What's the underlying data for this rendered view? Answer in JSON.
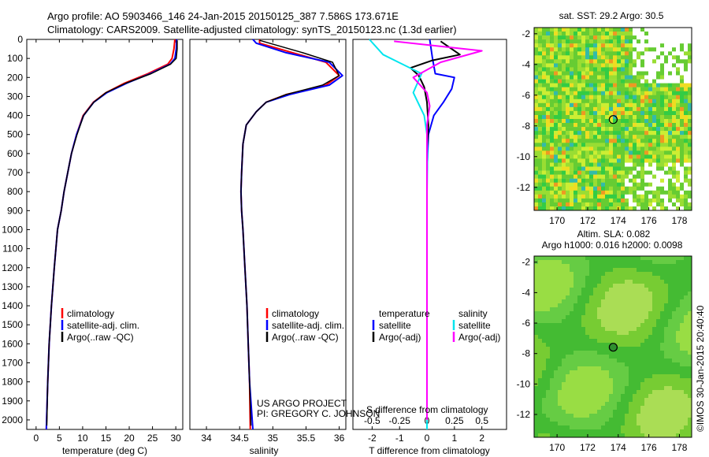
{
  "header": {
    "line1": "Argo profile: AO 5903466_146 24-Jan-2015 20150125_387 7.586S 173.671E",
    "line2": "Climatology: CARS2009. Satellite-adjusted climatology: synTS_20150123.nc (1.3d earlier)"
  },
  "credit": {
    "project": "US ARGO PROJECT",
    "pi": "PI: GREGORY C. JOHNSON",
    "stamp": "©IMOS 30-Jan-2015 20:40:40"
  },
  "colors": {
    "climatology": "#ff0000",
    "satellite": "#0000ff",
    "argo": "#000000",
    "sat_salinity": "#00e5ee",
    "argo_salinity": "#ff00ff"
  },
  "chart_data": [
    {
      "type": "line",
      "id": "temperature",
      "xlabel": "temperature (deg C)",
      "ylabel": "",
      "xlim": [
        -2,
        31.5
      ],
      "ylim": [
        2050,
        0
      ],
      "xticks": [
        "0",
        "5",
        "10",
        "15",
        "20",
        "25",
        "30"
      ],
      "yticks": [
        "0",
        "100",
        "200",
        "300",
        "400",
        "500",
        "600",
        "700",
        "800",
        "900",
        "1000",
        "1100",
        "1200",
        "1300",
        "1400",
        "1500",
        "1600",
        "1700",
        "1800",
        "1900",
        "2000"
      ],
      "legend": [
        "climatology",
        "satellite-adj. clim.",
        "Argo(..raw -QC)"
      ],
      "series": [
        {
          "name": "climatology",
          "x": [
            29.8,
            29.6,
            29.2,
            28.3,
            24,
            19,
            15,
            12.3,
            10.1,
            8.7,
            7.6,
            6.8,
            6.0,
            5.4,
            4.6,
            3.9,
            3.3,
            2.8,
            2.5,
            2.2
          ],
          "y": [
            0,
            50,
            100,
            130,
            180,
            230,
            280,
            330,
            400,
            500,
            600,
            700,
            800,
            900,
            1000,
            1200,
            1400,
            1600,
            1800,
            2050
          ]
        },
        {
          "name": "satellite-adj. clim.",
          "x": [
            30.2,
            30.1,
            29.8,
            28.8,
            24.5,
            19.5,
            15.2,
            12.4,
            10.2,
            8.7,
            7.6,
            6.8,
            6.0,
            5.4,
            4.6,
            3.9,
            3.3,
            2.8,
            2.5,
            2.2
          ],
          "y": [
            0,
            50,
            100,
            130,
            180,
            230,
            280,
            330,
            400,
            500,
            600,
            700,
            800,
            900,
            1000,
            1200,
            1400,
            1600,
            1800,
            2050
          ]
        },
        {
          "name": "Argo(..raw -QC)",
          "x": [
            30.3,
            30.3,
            30.1,
            28.9,
            24.7,
            19.3,
            15.0,
            12.4,
            10.2,
            8.8,
            7.6,
            6.8,
            6.0,
            5.4,
            4.6,
            3.9,
            3.3,
            2.8,
            2.5,
            2.3
          ],
          "y": [
            5,
            50,
            100,
            130,
            180,
            230,
            280,
            330,
            400,
            500,
            600,
            700,
            800,
            900,
            1000,
            1200,
            1400,
            1600,
            1800,
            2030
          ]
        }
      ]
    },
    {
      "type": "line",
      "id": "salinity",
      "xlabel": "salinity",
      "ylabel": "",
      "xlim": [
        33.75,
        36.1
      ],
      "ylim": [
        2050,
        0
      ],
      "xticks": [
        "34",
        "34.5",
        "35",
        "35.5",
        "36"
      ],
      "legend": [
        "climatology",
        "satellite-adj. clim.",
        "Argo(..raw -QC)"
      ],
      "series": [
        {
          "name": "climatology",
          "x": [
            34.8,
            34.8,
            35.3,
            35.8,
            36.0,
            35.8,
            35.2,
            34.9,
            34.75,
            34.6,
            34.55,
            34.53,
            34.52,
            34.53,
            34.55,
            34.58,
            34.61,
            34.63,
            34.65,
            34.66
          ],
          "y": [
            0,
            20,
            70,
            120,
            190,
            240,
            290,
            330,
            380,
            450,
            550,
            700,
            800,
            900,
            1000,
            1200,
            1400,
            1600,
            1800,
            2050
          ]
        },
        {
          "name": "satellite-adj. clim.",
          "x": [
            34.7,
            34.75,
            35.2,
            35.85,
            36.05,
            35.85,
            35.25,
            34.9,
            34.75,
            34.6,
            34.55,
            34.53,
            34.52,
            34.53,
            34.55,
            34.58,
            34.61,
            34.63,
            34.65,
            34.7
          ],
          "y": [
            0,
            20,
            70,
            120,
            190,
            240,
            290,
            330,
            380,
            450,
            550,
            700,
            800,
            900,
            1000,
            1200,
            1400,
            1600,
            1800,
            2050
          ]
        },
        {
          "name": "Argo(..raw -QC)",
          "x": [
            34.8,
            34.95,
            35.45,
            35.9,
            36.0,
            35.75,
            35.2,
            34.9,
            34.75,
            34.6,
            34.55,
            34.53,
            34.52,
            34.53,
            34.55,
            34.58,
            34.61,
            34.63,
            34.65,
            34.67
          ],
          "y": [
            5,
            20,
            70,
            120,
            190,
            240,
            290,
            330,
            380,
            450,
            550,
            700,
            800,
            900,
            1000,
            1200,
            1400,
            1600,
            1800,
            2030
          ]
        }
      ]
    },
    {
      "type": "line",
      "id": "difference",
      "xlabel": "T difference from climatology",
      "xlabel_top": "S difference from climatology",
      "xlim": [
        -2.7,
        2.9
      ],
      "ylim": [
        2050,
        0
      ],
      "xticks": [
        "-2",
        "-1",
        "0",
        "1",
        "2"
      ],
      "xticks_s": [
        "-0.5",
        "-0.25",
        "0",
        "0.25",
        "0.5"
      ],
      "legend_t": [
        "temperature",
        "satellite",
        "Argo(-adj)"
      ],
      "legend_s": [
        "salinity",
        "satellite",
        "Argo(-adj)"
      ],
      "series": [
        {
          "name": "satellite",
          "x": [
            0.1,
            0.2,
            0.3,
            1.0,
            0.9,
            0.6,
            0.25,
            0.05,
            0,
            0,
            0,
            0
          ],
          "y": [
            0,
            100,
            180,
            200,
            260,
            330,
            400,
            500,
            700,
            1000,
            1500,
            2050
          ]
        },
        {
          "name": "Argo(-adj)",
          "x": [
            0.5,
            1.2,
            0.2,
            -0.6,
            -0.3,
            -0.1,
            0,
            0.05,
            0,
            0,
            0,
            0
          ],
          "y": [
            10,
            80,
            110,
            150,
            190,
            250,
            330,
            450,
            600,
            800,
            1200,
            2000
          ]
        },
        {
          "name": "satellite",
          "x": [
            -2.1,
            -1.6,
            -0.2,
            -0.5,
            -0.1,
            0,
            0.02,
            0,
            0,
            0
          ],
          "y": [
            0,
            80,
            180,
            280,
            400,
            500,
            600,
            800,
            1200,
            2050
          ]
        },
        {
          "name": "Argo(-adj)",
          "x": [
            -1.2,
            2.0,
            0.5,
            -0.5,
            0,
            0.1,
            0,
            0,
            0,
            0
          ],
          "y": [
            10,
            60,
            120,
            200,
            280,
            350,
            450,
            600,
            1000,
            2000
          ]
        }
      ]
    },
    {
      "type": "heatmap",
      "id": "sst-map",
      "title": "sat. SST: 29.2  Argo: 30.5",
      "xlim": [
        168.5,
        178.8
      ],
      "ylim": [
        -13.5,
        -1.6
      ],
      "xticks": [
        "170",
        "172",
        "174",
        "176",
        "178"
      ],
      "yticks": [
        "-2",
        "-4",
        "-6",
        "-8",
        "-10",
        "-12"
      ],
      "marker": {
        "lon": 173.671,
        "lat": -7.586
      }
    },
    {
      "type": "heatmap",
      "id": "sla-map",
      "title": "Altim. SLA: 0.082",
      "subtitle": "Argo h1000: 0.016 h2000: 0.0098",
      "xlim": [
        168.5,
        178.8
      ],
      "ylim": [
        -13.5,
        -1.6
      ],
      "xticks": [
        "170",
        "172",
        "174",
        "176",
        "178"
      ],
      "yticks": [
        "-2",
        "-4",
        "-6",
        "-8",
        "-10",
        "-12"
      ],
      "marker": {
        "lon": 173.671,
        "lat": -7.586
      }
    }
  ]
}
